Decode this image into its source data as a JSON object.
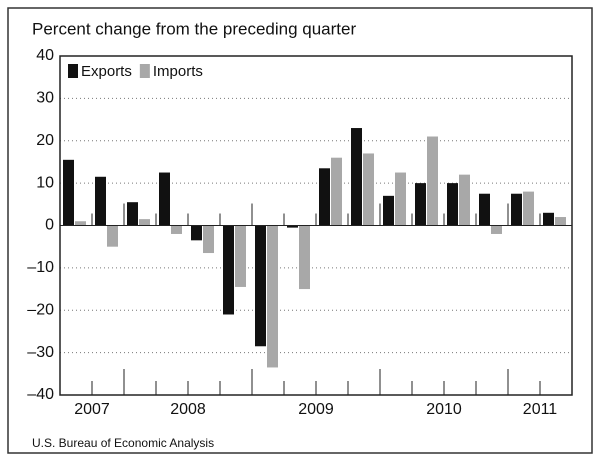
{
  "chart_data": {
    "type": "bar",
    "title": "Percent change from the preceding quarter",
    "source": "U.S. Bureau of Economic Analysis",
    "categories": [
      null,
      null,
      null,
      null,
      null,
      null,
      null,
      null,
      null,
      null,
      null,
      null,
      null,
      null,
      null,
      null
    ],
    "groups": [
      {
        "label": "2007",
        "size": 2
      },
      {
        "label": "2008",
        "size": 4
      },
      {
        "label": "2009",
        "size": 4
      },
      {
        "label": "2010",
        "size": 4
      },
      {
        "label": "2011",
        "size": 2
      }
    ],
    "series": [
      {
        "name": "Exports",
        "color": "#111111",
        "values": [
          15.5,
          11.5,
          5.5,
          12.5,
          -3.5,
          -21,
          -28.5,
          -0.5,
          13.5,
          23,
          7,
          10,
          10,
          7.5,
          7.5,
          3
        ]
      },
      {
        "name": "Imports",
        "color": "#a8a8a8",
        "values": [
          1,
          -5,
          1.5,
          -2,
          -6.5,
          -14.5,
          -33.5,
          -15,
          16,
          17,
          12.5,
          21,
          12,
          -2,
          8,
          2
        ]
      }
    ],
    "ylim": [
      -40,
      40
    ],
    "yticks": [
      {
        "value": -40,
        "label": "–40"
      },
      {
        "value": -30,
        "label": "–30"
      },
      {
        "value": -20,
        "label": "–20"
      },
      {
        "value": -10,
        "label": "–10"
      },
      0,
      10,
      20,
      30,
      40
    ],
    "grid": true,
    "legend": "top-left"
  }
}
